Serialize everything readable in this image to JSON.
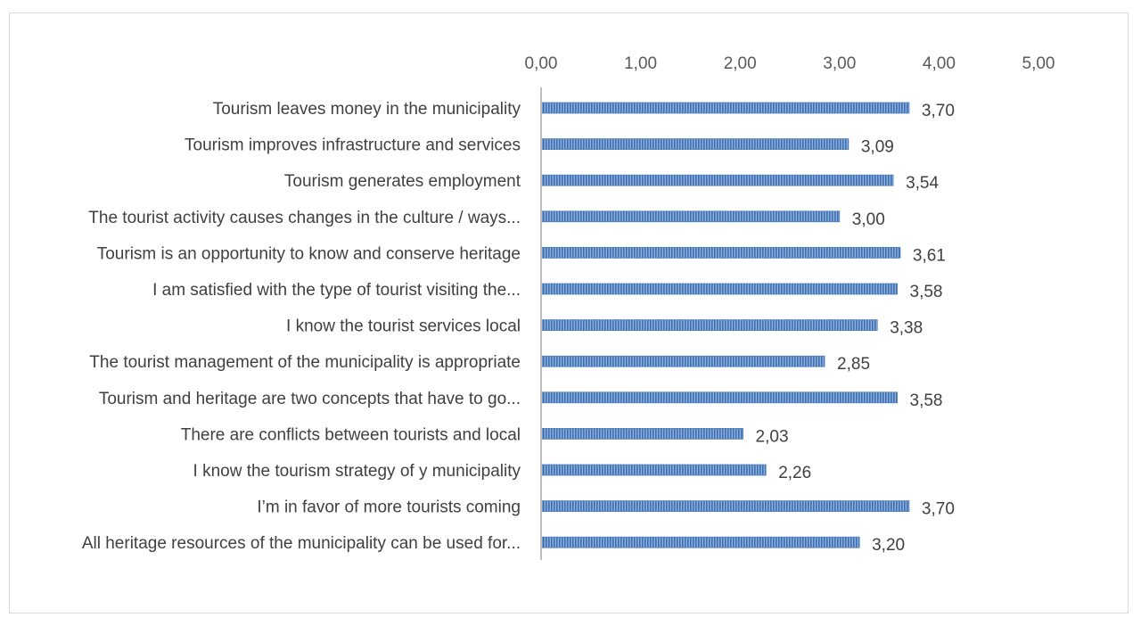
{
  "chart_data": {
    "type": "bar",
    "orientation": "horizontal",
    "title": "",
    "xlabel": "",
    "ylabel": "",
    "xlim": [
      0,
      5
    ],
    "x_ticks": [
      "0,00",
      "1,00",
      "2,00",
      "3,00",
      "4,00",
      "5,00"
    ],
    "x_axis_position": "top",
    "grid": false,
    "legend": "none",
    "bar_color": "#4f81bd",
    "categories": [
      "Tourism leaves money in the municipality",
      "Tourism improves infrastructure and services",
      "Tourism generates employment",
      "The tourist activity causes changes in the culture / ways...",
      "Tourism is an opportunity to know and conserve heritage",
      "I am satisfied with the type of tourist visiting the...",
      "I know the tourist services local",
      "The tourist management of the municipality is appropriate",
      "Tourism and heritage are two concepts that have to go...",
      "There are conflicts between tourists and local",
      "I know the tourism strategy of y municipality",
      "I’m in favor of more tourists coming",
      "All heritage resources of the municipality can be used for..."
    ],
    "values": [
      3.7,
      3.09,
      3.54,
      3.0,
      3.61,
      3.58,
      3.38,
      2.85,
      3.58,
      2.03,
      2.26,
      3.7,
      3.2
    ],
    "value_labels": [
      "3,70",
      "3,09",
      "3,54",
      "3,00",
      "3,61",
      "3,58",
      "3,38",
      "2,85",
      "3,58",
      "2,03",
      "2,26",
      "3,70",
      "3,20"
    ]
  }
}
